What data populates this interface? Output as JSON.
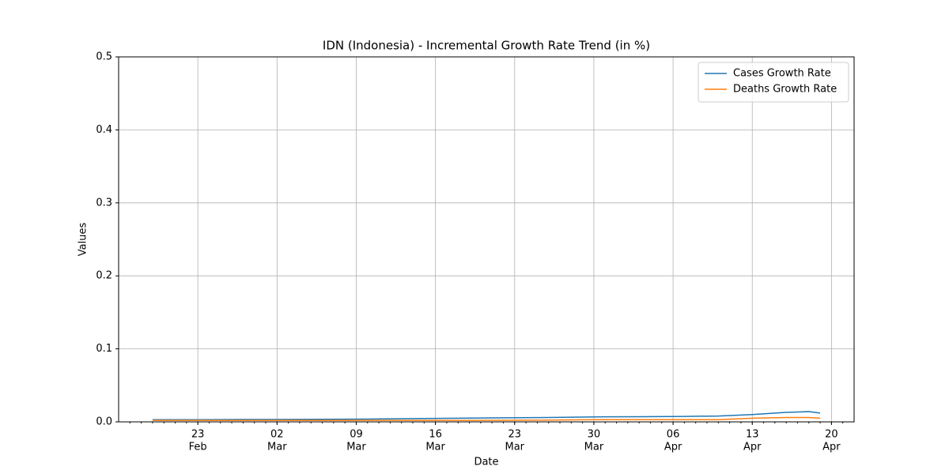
{
  "chart_data": {
    "type": "line",
    "title": "IDN (Indonesia) - Incremental Growth Rate Trend (in %)",
    "xlabel": "Date",
    "ylabel": "Values",
    "x": [
      "Feb 19",
      "Feb 23",
      "Feb 27",
      "Mar 2",
      "Mar 6",
      "Mar 10",
      "Mar 14",
      "Mar 18",
      "Mar 22",
      "Mar 26",
      "Mar 30",
      "Apr 3",
      "Apr 7",
      "Apr 10",
      "Apr 13",
      "Apr 16",
      "Apr 18",
      "Apr 19"
    ],
    "series": [
      {
        "name": "Cases Growth Rate",
        "color": "#1f77b4",
        "values": [
          0.003,
          0.003,
          0.0032,
          0.0033,
          0.0035,
          0.0038,
          0.0045,
          0.005,
          0.0055,
          0.006,
          0.0068,
          0.007,
          0.0075,
          0.008,
          0.01,
          0.013,
          0.014,
          0.012
        ]
      },
      {
        "name": "Deaths Growth Rate",
        "color": "#ff7f0e",
        "values": [
          0.002,
          0.002,
          0.002,
          0.002,
          0.002,
          0.002,
          0.002,
          0.002,
          0.0022,
          0.0025,
          0.003,
          0.003,
          0.003,
          0.003,
          0.005,
          0.006,
          0.006,
          0.005
        ]
      }
    ],
    "xlim": [
      "Feb 16",
      "Apr 22"
    ],
    "xticks": [
      {
        "value": "Feb 23",
        "label": [
          "23",
          "Feb"
        ]
      },
      {
        "value": "Mar 2",
        "label": [
          "02",
          "Mar"
        ]
      },
      {
        "value": "Mar 9",
        "label": [
          "09",
          "Mar"
        ]
      },
      {
        "value": "Mar 16",
        "label": [
          "16",
          "Mar"
        ]
      },
      {
        "value": "Mar 23",
        "label": [
          "23",
          "Mar"
        ]
      },
      {
        "value": "Mar 30",
        "label": [
          "30",
          "Mar"
        ]
      },
      {
        "value": "Apr 6",
        "label": [
          "06",
          "Apr"
        ]
      },
      {
        "value": "Apr 13",
        "label": [
          "13",
          "Apr"
        ]
      },
      {
        "value": "Apr 20",
        "label": [
          "20",
          "Apr"
        ]
      }
    ],
    "ylim": [
      0,
      0.5
    ],
    "yticks": [
      {
        "value": 0,
        "label": "0.0"
      },
      0.1,
      0.2,
      0.3,
      0.4,
      0.5
    ],
    "grid": true,
    "legend": "upper right"
  }
}
